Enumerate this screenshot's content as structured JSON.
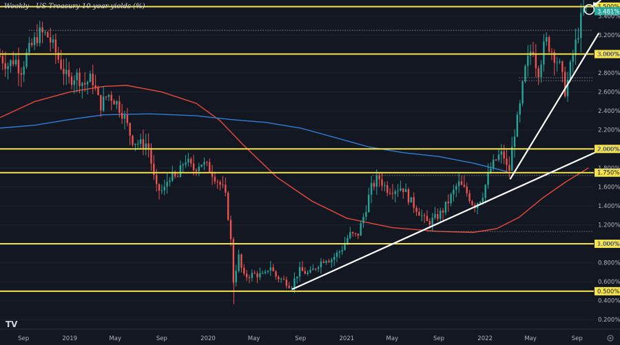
{
  "window": {
    "title": "Weekly - US Treasury 10-year yields (%)"
  },
  "colors": {
    "background": "#131722",
    "candle_up": "#26a69a",
    "candle_down": "#ef5350",
    "ma_short": "#e84b3c",
    "ma_long": "#2f7ed8",
    "level_line": "#f5e44c",
    "trend_line": "#ffffff",
    "axis_text": "#b2b5be"
  },
  "chart_data": {
    "type": "candlestick",
    "title": "Weekly - US Treasury 10-year yields (%)",
    "y_unit": "%",
    "ylim": [
      0.1,
      3.57
    ],
    "y_ticks": [
      "3.400%",
      "3.200%",
      "3.000%",
      "2.800%",
      "2.600%",
      "2.400%",
      "2.200%",
      "2.000%",
      "1.800%",
      "1.600%",
      "1.400%",
      "1.200%",
      "1.000%",
      "0.800%",
      "0.600%",
      "0.400%",
      "0.200%"
    ],
    "x_ticks": [
      "Sep",
      "2019",
      "May",
      "Sep",
      "2020",
      "May",
      "Sep",
      "2021",
      "May",
      "Sep",
      "2022",
      "May",
      "Sep"
    ],
    "x_range": [
      "2018-07-01",
      "2022-10-15"
    ],
    "highlighted_levels": [
      "3.500%",
      "3.000%",
      "2.000%",
      "1.750%",
      "1.000%",
      "0.500%"
    ],
    "last_price": {
      "label": "3.481%",
      "value": 3.481
    },
    "price_path": [
      [
        "2018-07-01",
        2.98
      ],
      [
        "2018-07-20",
        2.88
      ],
      [
        "2018-08-10",
        2.95
      ],
      [
        "2018-08-24",
        2.82
      ],
      [
        "2018-09-10",
        3.0
      ],
      [
        "2018-09-28",
        3.12
      ],
      [
        "2018-10-12",
        3.22
      ],
      [
        "2018-11-02",
        3.2
      ],
      [
        "2018-11-16",
        3.1
      ],
      [
        "2018-12-05",
        2.92
      ],
      [
        "2018-12-28",
        2.72
      ],
      [
        "2019-01-18",
        2.78
      ],
      [
        "2019-02-08",
        2.68
      ],
      [
        "2019-03-01",
        2.75
      ],
      [
        "2019-03-22",
        2.45
      ],
      [
        "2019-04-12",
        2.58
      ],
      [
        "2019-05-03",
        2.5
      ],
      [
        "2019-05-24",
        2.35
      ],
      [
        "2019-06-14",
        2.1
      ],
      [
        "2019-07-05",
        2.05
      ],
      [
        "2019-07-26",
        2.06
      ],
      [
        "2019-08-16",
        1.58
      ],
      [
        "2019-09-06",
        1.55
      ],
      [
        "2019-09-20",
        1.72
      ],
      [
        "2019-10-11",
        1.68
      ],
      [
        "2019-11-01",
        1.9
      ],
      [
        "2019-11-22",
        1.78
      ],
      [
        "2019-12-13",
        1.86
      ],
      [
        "2020-01-03",
        1.8
      ],
      [
        "2020-01-24",
        1.68
      ],
      [
        "2020-02-14",
        1.55
      ],
      [
        "2020-02-28",
        1.15
      ],
      [
        "2020-03-09",
        0.55
      ],
      [
        "2020-03-20",
        0.9
      ],
      [
        "2020-04-03",
        0.65
      ],
      [
        "2020-05-01",
        0.68
      ],
      [
        "2020-05-29",
        0.66
      ],
      [
        "2020-06-12",
        0.78
      ],
      [
        "2020-06-26",
        0.66
      ],
      [
        "2020-07-24",
        0.6
      ],
      [
        "2020-08-07",
        0.55
      ],
      [
        "2020-08-28",
        0.72
      ],
      [
        "2020-09-25",
        0.68
      ],
      [
        "2020-10-16",
        0.78
      ],
      [
        "2020-11-06",
        0.85
      ],
      [
        "2020-11-20",
        0.83
      ],
      [
        "2020-12-18",
        0.94
      ],
      [
        "2021-01-08",
        1.1
      ],
      [
        "2021-01-29",
        1.08
      ],
      [
        "2021-02-19",
        1.35
      ],
      [
        "2021-03-05",
        1.58
      ],
      [
        "2021-03-26",
        1.7
      ],
      [
        "2021-04-16",
        1.58
      ],
      [
        "2021-05-07",
        1.58
      ],
      [
        "2021-05-28",
        1.6
      ],
      [
        "2021-06-18",
        1.45
      ],
      [
        "2021-07-09",
        1.35
      ],
      [
        "2021-07-30",
        1.22
      ],
      [
        "2021-08-20",
        1.26
      ],
      [
        "2021-09-10",
        1.34
      ],
      [
        "2021-10-01",
        1.48
      ],
      [
        "2021-10-22",
        1.64
      ],
      [
        "2021-11-12",
        1.55
      ],
      [
        "2021-12-03",
        1.4
      ],
      [
        "2021-12-24",
        1.5
      ],
      [
        "2022-01-14",
        1.78
      ],
      [
        "2022-02-04",
        1.92
      ],
      [
        "2022-02-18",
        1.95
      ],
      [
        "2022-03-04",
        1.72
      ],
      [
        "2022-03-18",
        2.15
      ],
      [
        "2022-04-01",
        2.38
      ],
      [
        "2022-04-15",
        2.8
      ],
      [
        "2022-05-06",
        3.1
      ],
      [
        "2022-05-20",
        2.8
      ],
      [
        "2022-06-10",
        3.15
      ],
      [
        "2022-06-24",
        3.05
      ],
      [
        "2022-07-15",
        2.9
      ],
      [
        "2022-08-01",
        2.6
      ],
      [
        "2022-08-19",
        2.95
      ],
      [
        "2022-09-02",
        3.2
      ],
      [
        "2022-09-16",
        3.45
      ],
      [
        "2022-10-01",
        3.48
      ]
    ],
    "series": [
      {
        "name": "",
        "color": "#e84b3c",
        "points": [
          [
            "2018-07-01",
            2.33
          ],
          [
            "2018-10-01",
            2.5
          ],
          [
            "2019-01-01",
            2.6
          ],
          [
            "2019-04-01",
            2.66
          ],
          [
            "2019-06-01",
            2.67
          ],
          [
            "2019-09-01",
            2.6
          ],
          [
            "2019-12-01",
            2.48
          ],
          [
            "2020-02-01",
            2.3
          ],
          [
            "2020-04-01",
            2.05
          ],
          [
            "2020-07-01",
            1.7
          ],
          [
            "2020-10-01",
            1.45
          ],
          [
            "2021-01-01",
            1.27
          ],
          [
            "2021-05-01",
            1.17
          ],
          [
            "2021-09-01",
            1.13
          ],
          [
            "2021-12-01",
            1.12
          ],
          [
            "2022-02-01",
            1.16
          ],
          [
            "2022-04-01",
            1.28
          ],
          [
            "2022-06-01",
            1.48
          ],
          [
            "2022-08-01",
            1.65
          ],
          [
            "2022-10-01",
            1.8
          ]
        ]
      },
      {
        "name": "",
        "color": "#2f7ed8",
        "points": [
          [
            "2018-07-01",
            2.22
          ],
          [
            "2018-10-01",
            2.25
          ],
          [
            "2019-01-01",
            2.31
          ],
          [
            "2019-04-01",
            2.36
          ],
          [
            "2019-08-01",
            2.37
          ],
          [
            "2019-12-01",
            2.35
          ],
          [
            "2020-03-01",
            2.31
          ],
          [
            "2020-06-01",
            2.28
          ],
          [
            "2020-09-01",
            2.22
          ],
          [
            "2020-12-01",
            2.12
          ],
          [
            "2021-03-01",
            2.02
          ],
          [
            "2021-06-01",
            1.96
          ],
          [
            "2021-09-01",
            1.92
          ],
          [
            "2021-12-01",
            1.85
          ],
          [
            "2022-03-01",
            1.76
          ]
        ]
      }
    ],
    "trend_lines": [
      {
        "from": [
          "2020-08-10",
          0.52
        ],
        "to": [
          "2022-10-28",
          1.98
        ]
      },
      {
        "from": [
          "2022-03-08",
          1.68
        ],
        "to": [
          "2022-10-28",
          3.22
        ]
      }
    ],
    "dotted_levels": [
      {
        "value": 3.25,
        "from": "2018-09-15"
      },
      {
        "value": 2.75,
        "from": "2022-04-01"
      },
      {
        "value": 2.72,
        "from": "2022-04-01"
      },
      {
        "value": 1.72,
        "from": "2021-03-10"
      },
      {
        "value": 1.13,
        "from": "2021-08-01"
      }
    ]
  }
}
